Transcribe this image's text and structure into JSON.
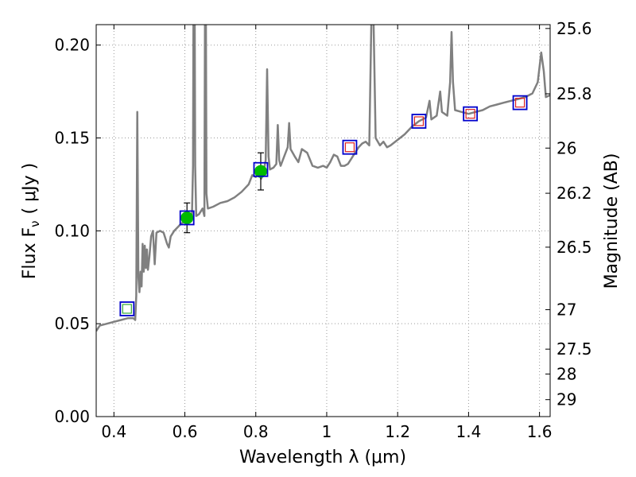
{
  "chart_data": {
    "type": "line",
    "title": "",
    "xlabel": "Wavelength  λ (μm)",
    "ylabel": "Flux  F",
    "ylabel_sub": "ν",
    "ylabel_unit": "( μJy )",
    "ylabel_right": "Magnitude (AB)",
    "xlim": [
      0.35,
      1.63
    ],
    "ylim": [
      0.0,
      0.211
    ],
    "grid": true,
    "x_ticks": [
      {
        "value": 0.4,
        "label": "0.4"
      },
      {
        "value": 0.6,
        "label": "0.6"
      },
      {
        "value": 0.8,
        "label": "0.8"
      },
      {
        "value": 1.0,
        "label": "1"
      },
      {
        "value": 1.2,
        "label": "1.2"
      },
      {
        "value": 1.4,
        "label": "1.4"
      },
      {
        "value": 1.6,
        "label": "1.6"
      }
    ],
    "y_ticks": [
      {
        "value": 0.0,
        "label": "0.00"
      },
      {
        "value": 0.05,
        "label": "0.05"
      },
      {
        "value": 0.1,
        "label": "0.10"
      },
      {
        "value": 0.15,
        "label": "0.15"
      },
      {
        "value": 0.2,
        "label": "0.20"
      }
    ],
    "right_ticks": [
      {
        "value": 25.6,
        "label": "25.6"
      },
      {
        "value": 25.8,
        "label": "25.8"
      },
      {
        "value": 26.0,
        "label": "26"
      },
      {
        "value": 26.2,
        "label": "26.2"
      },
      {
        "value": 26.5,
        "label": "26.5"
      },
      {
        "value": 27.0,
        "label": "27"
      },
      {
        "value": 27.5,
        "label": "27.5"
      },
      {
        "value": 28.0,
        "label": "28"
      },
      {
        "value": 29.0,
        "label": "29"
      }
    ],
    "colors": {
      "spectrum": "#808080",
      "observed_fill": "#00bb00",
      "model_box": "#0000cc",
      "model_inner_red": "#dd2222",
      "model_inner_green": "#33aa33",
      "errorbar": "#000000",
      "grid": "#9a9a9a"
    },
    "spectrum": [
      [
        0.35,
        0.046
      ],
      [
        0.36,
        0.049
      ],
      [
        0.38,
        0.05
      ],
      [
        0.4,
        0.051
      ],
      [
        0.42,
        0.052
      ],
      [
        0.44,
        0.053
      ],
      [
        0.455,
        0.053
      ],
      [
        0.46,
        0.052
      ],
      [
        0.463,
        0.065
      ],
      [
        0.466,
        0.164
      ],
      [
        0.469,
        0.075
      ],
      [
        0.472,
        0.067
      ],
      [
        0.475,
        0.078
      ],
      [
        0.478,
        0.07
      ],
      [
        0.481,
        0.093
      ],
      [
        0.484,
        0.078
      ],
      [
        0.487,
        0.092
      ],
      [
        0.49,
        0.08
      ],
      [
        0.493,
        0.09
      ],
      [
        0.496,
        0.079
      ],
      [
        0.5,
        0.086
      ],
      [
        0.505,
        0.097
      ],
      [
        0.51,
        0.1
      ],
      [
        0.515,
        0.082
      ],
      [
        0.52,
        0.099
      ],
      [
        0.53,
        0.1
      ],
      [
        0.54,
        0.099
      ],
      [
        0.55,
        0.093
      ],
      [
        0.555,
        0.091
      ],
      [
        0.56,
        0.097
      ],
      [
        0.57,
        0.1
      ],
      [
        0.58,
        0.102
      ],
      [
        0.59,
        0.104
      ],
      [
        0.6,
        0.105
      ],
      [
        0.61,
        0.106
      ],
      [
        0.62,
        0.107
      ],
      [
        0.623,
        0.135
      ],
      [
        0.626,
        0.33
      ],
      [
        0.629,
        0.135
      ],
      [
        0.632,
        0.108
      ],
      [
        0.64,
        0.109
      ],
      [
        0.65,
        0.112
      ],
      [
        0.655,
        0.108
      ],
      [
        0.658,
        0.3
      ],
      [
        0.661,
        0.12
      ],
      [
        0.665,
        0.112
      ],
      [
        0.68,
        0.113
      ],
      [
        0.7,
        0.115
      ],
      [
        0.72,
        0.116
      ],
      [
        0.74,
        0.118
      ],
      [
        0.76,
        0.121
      ],
      [
        0.78,
        0.125
      ],
      [
        0.79,
        0.13
      ],
      [
        0.8,
        0.129
      ],
      [
        0.81,
        0.131
      ],
      [
        0.815,
        0.128
      ],
      [
        0.82,
        0.13
      ],
      [
        0.828,
        0.138
      ],
      [
        0.832,
        0.187
      ],
      [
        0.836,
        0.14
      ],
      [
        0.84,
        0.133
      ],
      [
        0.85,
        0.134
      ],
      [
        0.858,
        0.136
      ],
      [
        0.862,
        0.157
      ],
      [
        0.866,
        0.138
      ],
      [
        0.87,
        0.135
      ],
      [
        0.88,
        0.14
      ],
      [
        0.89,
        0.145
      ],
      [
        0.894,
        0.158
      ],
      [
        0.898,
        0.144
      ],
      [
        0.91,
        0.14
      ],
      [
        0.92,
        0.137
      ],
      [
        0.93,
        0.144
      ],
      [
        0.945,
        0.142
      ],
      [
        0.96,
        0.135
      ],
      [
        0.975,
        0.134
      ],
      [
        0.99,
        0.135
      ],
      [
        1.0,
        0.134
      ],
      [
        1.01,
        0.137
      ],
      [
        1.02,
        0.141
      ],
      [
        1.03,
        0.14
      ],
      [
        1.04,
        0.135
      ],
      [
        1.05,
        0.135
      ],
      [
        1.06,
        0.136
      ],
      [
        1.07,
        0.139
      ],
      [
        1.08,
        0.142
      ],
      [
        1.09,
        0.145
      ],
      [
        1.1,
        0.147
      ],
      [
        1.11,
        0.148
      ],
      [
        1.12,
        0.146
      ],
      [
        1.126,
        0.215
      ],
      [
        1.132,
        0.215
      ],
      [
        1.138,
        0.15
      ],
      [
        1.15,
        0.146
      ],
      [
        1.16,
        0.148
      ],
      [
        1.17,
        0.145
      ],
      [
        1.18,
        0.146
      ],
      [
        1.2,
        0.149
      ],
      [
        1.22,
        0.152
      ],
      [
        1.24,
        0.156
      ],
      [
        1.26,
        0.159
      ],
      [
        1.28,
        0.161
      ],
      [
        1.29,
        0.17
      ],
      [
        1.295,
        0.16
      ],
      [
        1.31,
        0.162
      ],
      [
        1.32,
        0.175
      ],
      [
        1.325,
        0.164
      ],
      [
        1.34,
        0.162
      ],
      [
        1.348,
        0.18
      ],
      [
        1.352,
        0.207
      ],
      [
        1.356,
        0.18
      ],
      [
        1.362,
        0.165
      ],
      [
        1.38,
        0.164
      ],
      [
        1.4,
        0.163
      ],
      [
        1.42,
        0.164
      ],
      [
        1.44,
        0.165
      ],
      [
        1.46,
        0.167
      ],
      [
        1.48,
        0.168
      ],
      [
        1.5,
        0.169
      ],
      [
        1.52,
        0.17
      ],
      [
        1.54,
        0.171
      ],
      [
        1.56,
        0.172
      ],
      [
        1.58,
        0.174
      ],
      [
        1.595,
        0.18
      ],
      [
        1.605,
        0.196
      ],
      [
        1.612,
        0.186
      ],
      [
        1.618,
        0.172
      ],
      [
        1.63,
        0.173
      ]
    ],
    "observed_points": [
      {
        "x": 0.606,
        "y": 0.107,
        "yerr": 0.008
      },
      {
        "x": 0.814,
        "y": 0.132,
        "yerr": 0.01
      }
    ],
    "model_points": [
      {
        "x": 0.437,
        "y": 0.058,
        "inner": "green"
      },
      {
        "x": 0.606,
        "y": 0.107,
        "inner": "none"
      },
      {
        "x": 0.814,
        "y": 0.133,
        "inner": "none"
      },
      {
        "x": 1.065,
        "y": 0.145,
        "inner": "red"
      },
      {
        "x": 1.26,
        "y": 0.159,
        "inner": "red"
      },
      {
        "x": 1.405,
        "y": 0.163,
        "inner": "red"
      },
      {
        "x": 1.545,
        "y": 0.169,
        "inner": "red"
      }
    ]
  }
}
